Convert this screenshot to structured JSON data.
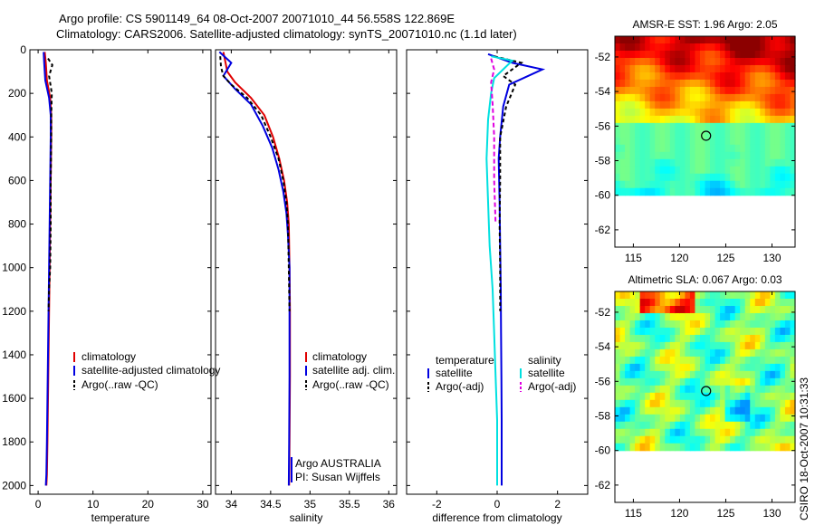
{
  "header": {
    "line1": "Argo profile: CS 5901149_64 08-Oct-2007 20071010_44 56.558S 122.869E",
    "line2": "Climatology: CARS2006. Satellite-adjusted climatology: synTS_20071010.nc (1.1d later)"
  },
  "side_label": "CSIRO 18-Oct-2007 10:31:33",
  "colors": {
    "climatology": "#e00000",
    "satellite": "#0000e0",
    "argo": "#000000",
    "sat_salinity": "#00e0e0",
    "argo_adj_salinity": "#e000e0"
  },
  "chart_data": [
    {
      "type": "line",
      "xlabel": "temperature",
      "xlim": [
        -1.5,
        31.5
      ],
      "xticks": [
        0,
        10,
        20,
        30
      ],
      "ylim": [
        0,
        2040
      ],
      "yticks": [
        0,
        200,
        400,
        600,
        800,
        1000,
        1200,
        1400,
        1600,
        1800,
        2000
      ],
      "legend": [
        "climatology",
        "satellite-adjusted climatology",
        "Argo(..raw -QC)"
      ],
      "series": [
        {
          "name": "climatology",
          "color": "#e00000",
          "dash": "",
          "x": [
            1.2,
            1.4,
            1.6,
            2.2,
            2.4,
            2.4,
            2.3,
            2.2,
            2.1,
            2.0,
            1.9,
            1.8,
            1.7,
            1.6,
            1.5
          ],
          "y": [
            10,
            60,
            140,
            220,
            300,
            400,
            600,
            800,
            1000,
            1200,
            1400,
            1600,
            1800,
            1950,
            2000
          ]
        },
        {
          "name": "satellite-adjusted climatology",
          "color": "#0000e0",
          "dash": "",
          "x": [
            1.0,
            1.1,
            1.3,
            2.0,
            2.3,
            2.3,
            2.2,
            2.1,
            2.0,
            1.9,
            1.8,
            1.7,
            1.6,
            1.5,
            1.4
          ],
          "y": [
            10,
            60,
            140,
            220,
            300,
            400,
            600,
            800,
            1000,
            1200,
            1400,
            1600,
            1800,
            1950,
            2000
          ]
        },
        {
          "name": "Argo(..raw -QC)",
          "color": "#000000",
          "dash": "4,3",
          "x": [
            1.8,
            2.6,
            2.0,
            2.5,
            2.4,
            2.4,
            2.3,
            2.3,
            2.2,
            2.0,
            1.9
          ],
          "y": [
            40,
            70,
            120,
            200,
            300,
            400,
            600,
            800,
            1000,
            1100,
            1200
          ]
        }
      ],
      "annotations": []
    },
    {
      "type": "line",
      "xlabel": "salinity",
      "xlim": [
        33.8,
        36.1
      ],
      "xticks": [
        34,
        34.5,
        35,
        35.5,
        36
      ],
      "ylim": [
        0,
        2040
      ],
      "yticks": [
        0,
        200,
        400,
        600,
        800,
        1000,
        1200,
        1400,
        1600,
        1800,
        2000
      ],
      "legend": [
        "climatology",
        "satellite adj. clim.",
        "Argo(..raw -QC)"
      ],
      "series": [
        {
          "name": "climatology",
          "color": "#e00000",
          "dash": "",
          "x": [
            33.9,
            33.95,
            34.05,
            34.25,
            34.42,
            34.53,
            34.61,
            34.67,
            34.71,
            34.73,
            34.74,
            34.745,
            34.745,
            34.74,
            34.735
          ],
          "y": [
            10,
            100,
            150,
            220,
            300,
            400,
            500,
            600,
            700,
            800,
            1000,
            1200,
            1500,
            1800,
            2000
          ]
        },
        {
          "name": "satellite adj. clim.",
          "color": "#0000e0",
          "dash": "",
          "x": [
            33.85,
            34.0,
            33.9,
            34.05,
            34.25,
            34.4,
            34.52,
            34.6,
            34.66,
            34.7,
            34.72,
            34.74,
            34.74,
            34.74,
            34.735,
            34.73
          ],
          "y": [
            10,
            60,
            120,
            180,
            250,
            350,
            450,
            550,
            650,
            750,
            850,
            1000,
            1200,
            1500,
            1800,
            2000
          ]
        },
        {
          "name": "Argo(..raw -QC)",
          "color": "#000000",
          "dash": "4,3",
          "x": [
            33.86,
            33.87,
            33.9,
            34.0,
            34.2,
            34.38,
            34.5,
            34.6,
            34.66,
            34.7,
            34.72,
            34.73,
            34.74
          ],
          "y": [
            30,
            80,
            120,
            160,
            220,
            300,
            400,
            500,
            600,
            700,
            800,
            1000,
            1200
          ]
        }
      ],
      "annotations": [
        "Argo AUSTRALIA",
        "PI: Susan Wijffels"
      ]
    },
    {
      "type": "line",
      "xlabel": "difference from climatology",
      "xlim": [
        -3.0,
        3.0
      ],
      "xticks": [
        -2,
        0,
        2
      ],
      "ylim": [
        0,
        2040
      ],
      "yticks": [
        0,
        200,
        400,
        600,
        800,
        1000,
        1200,
        1400,
        1600,
        1800,
        2000
      ],
      "legend_left_title": "temperature",
      "legend_right_title": "salinity",
      "legend": [
        "satellite",
        "Argo(-adj)",
        "satellite",
        "Argo(-adj)"
      ],
      "series": [
        {
          "name": "temperature satellite",
          "color": "#0000e0",
          "dash": "",
          "x": [
            -0.3,
            0.5,
            1.5,
            0.4,
            0.2,
            0.1,
            0.05,
            0.08,
            0.1,
            0.12,
            0.13,
            0.14,
            0.15,
            0.15,
            0.15
          ],
          "y": [
            20,
            60,
            90,
            160,
            260,
            400,
            500,
            700,
            900,
            1100,
            1300,
            1500,
            1700,
            1900,
            2000
          ]
        },
        {
          "name": "temperature Argo(-adj)",
          "color": "#000000",
          "dash": "4,3",
          "x": [
            -0.1,
            0.8,
            0.2,
            0.6,
            0.3,
            0.1,
            0.1,
            0.08,
            0.1,
            0.1
          ],
          "y": [
            30,
            60,
            120,
            160,
            260,
            400,
            600,
            800,
            1000,
            1200
          ]
        },
        {
          "name": "salinity satellite",
          "color": "#00e0e0",
          "dash": "",
          "x": [
            -0.2,
            0.5,
            -0.1,
            -0.2,
            -0.3,
            -0.35,
            -0.3,
            -0.25,
            -0.15,
            -0.1,
            -0.05,
            0.0,
            0.0,
            0.0
          ],
          "y": [
            30,
            50,
            130,
            200,
            320,
            500,
            700,
            900,
            1100,
            1300,
            1500,
            1700,
            1900,
            2000
          ]
        },
        {
          "name": "salinity Argo(-adj)",
          "color": "#e000e0",
          "dash": "5,3",
          "x": [
            -0.2,
            -0.1,
            -0.2,
            -0.15,
            -0.1,
            -0.1,
            -0.05
          ],
          "y": [
            40,
            90,
            150,
            250,
            400,
            600,
            800
          ]
        }
      ],
      "annotations": []
    },
    {
      "type": "heatmap",
      "title": "AMSR-E SST: 1.96 Argo: 2.05",
      "xlim": [
        113,
        132.5
      ],
      "ylim": [
        -63,
        -50.8
      ],
      "xticks": [
        115,
        120,
        125,
        130
      ],
      "yticks": [
        -52,
        -54,
        -56,
        -58,
        -60,
        -62
      ],
      "data_extent_y": [
        -60,
        -50.8
      ],
      "marker": {
        "lon": 122.869,
        "lat": -56.558
      }
    },
    {
      "type": "heatmap",
      "title": "Altimetric SLA: 0.067 Argo: 0.03",
      "xlim": [
        113,
        132.5
      ],
      "ylim": [
        -63,
        -50.8
      ],
      "xticks": [
        115,
        120,
        125,
        130
      ],
      "yticks": [
        -52,
        -54,
        -56,
        -58,
        -60,
        -62
      ],
      "data_extent_y": [
        -60,
        -50.8
      ],
      "marker": {
        "lon": 122.869,
        "lat": -56.558
      }
    }
  ]
}
